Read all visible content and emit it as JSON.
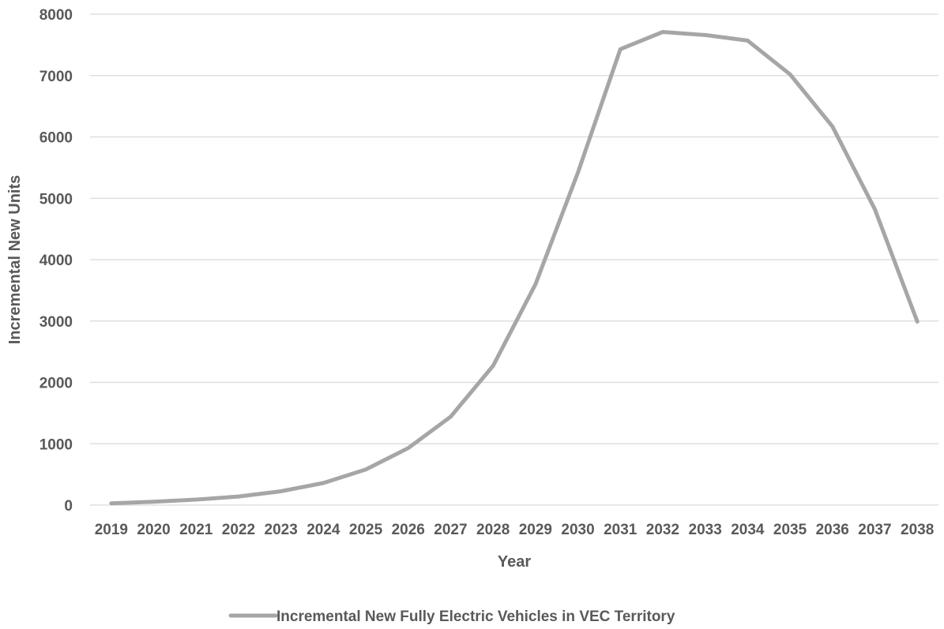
{
  "chart_data": {
    "type": "line",
    "title": "",
    "xlabel": "Year",
    "ylabel": "Incremental New Units",
    "categories": [
      "2019",
      "2020",
      "2021",
      "2022",
      "2023",
      "2024",
      "2025",
      "2026",
      "2027",
      "2028",
      "2029",
      "2030",
      "2031",
      "2032",
      "2033",
      "2034",
      "2035",
      "2036",
      "2037",
      "2038"
    ],
    "series": [
      {
        "name": "Incremental New Fully Electric Vehicles in VEC Territory",
        "color": "#a6a6a6",
        "values": [
          30,
          55,
          90,
          140,
          225,
          360,
          580,
          930,
          1440,
          2270,
          3600,
          5420,
          7430,
          7710,
          7660,
          7570,
          7020,
          6170,
          4820,
          2990
        ]
      }
    ],
    "ylim": [
      0,
      8000
    ],
    "yticks": [
      0,
      1000,
      2000,
      3000,
      4000,
      5000,
      6000,
      7000,
      8000
    ],
    "grid": true,
    "legend_position": "bottom"
  }
}
